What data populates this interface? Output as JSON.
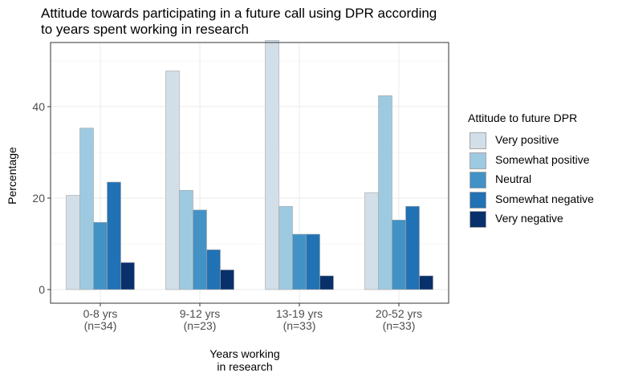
{
  "chart_data": {
    "type": "bar",
    "title_lines": [
      "Attitude towards participating in a future call using DPR according",
      "to years spent working in research"
    ],
    "xlabel_lines": [
      "Years working",
      "in research"
    ],
    "ylabel": "Percentage",
    "ylim": [
      0,
      57
    ],
    "yticks": [
      0,
      20,
      40
    ],
    "grid": true,
    "legend_placement": "right",
    "legend_title": "Attitude to future DPR",
    "categories": [
      [
        "0-8 yrs",
        "(n=34)"
      ],
      [
        "9-12 yrs",
        "(n=23)"
      ],
      [
        "13-19 yrs",
        "(n=33)"
      ],
      [
        "20-52 yrs",
        "(n=33)"
      ]
    ],
    "series": [
      {
        "name": "Very positive",
        "color": "#d2dfe9",
        "values": [
          20.6,
          47.8,
          54.5,
          21.2
        ]
      },
      {
        "name": "Somewhat positive",
        "color": "#9ecae1",
        "values": [
          35.3,
          21.7,
          18.2,
          42.4
        ]
      },
      {
        "name": "Neutral",
        "color": "#4292c6",
        "values": [
          14.7,
          17.4,
          12.1,
          15.2
        ]
      },
      {
        "name": "Somewhat negative",
        "color": "#2171b5",
        "values": [
          23.5,
          8.7,
          12.1,
          18.2
        ]
      },
      {
        "name": "Very negative",
        "color": "#08306b",
        "values": [
          5.9,
          4.3,
          3.0,
          3.0
        ]
      }
    ]
  }
}
